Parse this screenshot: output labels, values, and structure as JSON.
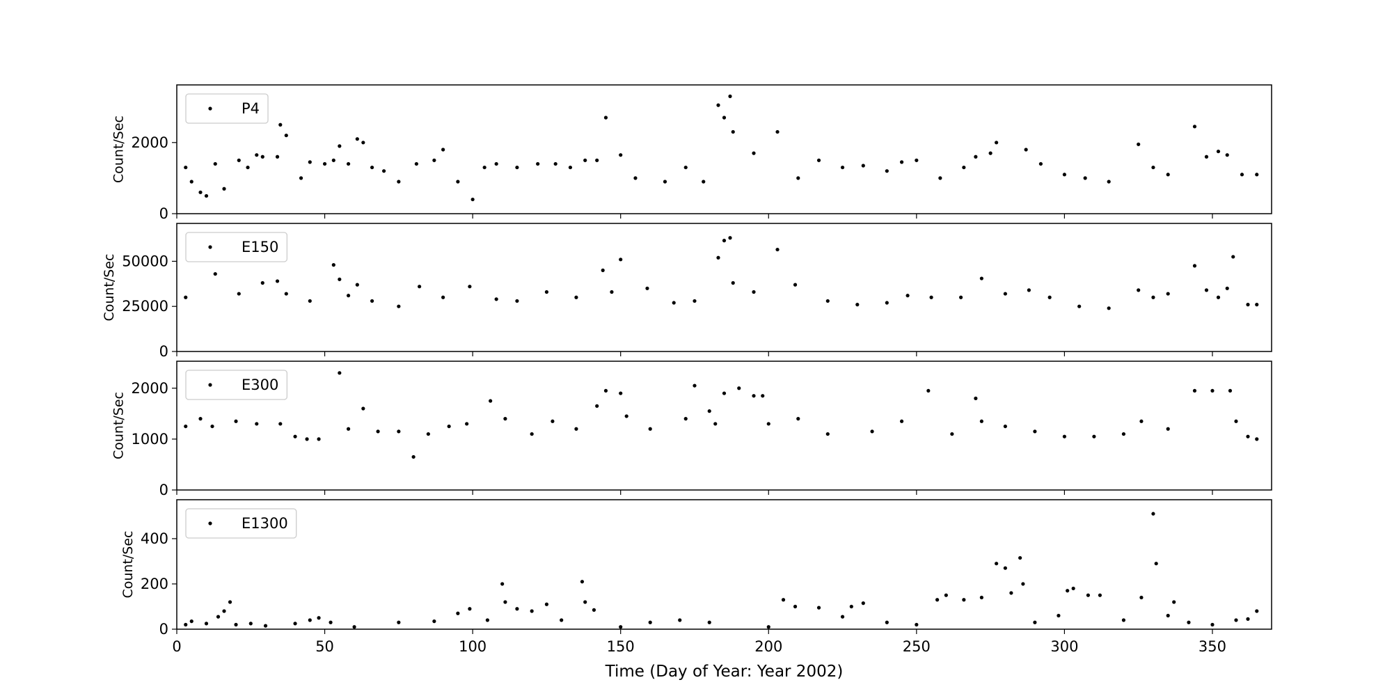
{
  "chart_data": [
    {
      "type": "scatter",
      "ylabel": "Count/Sec",
      "legend": "upper left",
      "xlim": [
        0,
        370
      ],
      "xticks": [
        0,
        50,
        100,
        150,
        200,
        250,
        300,
        350
      ],
      "ylim": [
        0,
        3620
      ],
      "yticks": [
        0,
        2000
      ],
      "series": [
        {
          "name": "P4",
          "color": "#000000",
          "x": [
            3,
            5,
            8,
            10,
            13,
            16,
            21,
            24,
            27,
            29,
            34,
            35,
            37,
            42,
            45,
            50,
            53,
            55,
            58,
            61,
            63,
            66,
            70,
            75,
            81,
            87,
            90,
            95,
            100,
            104,
            108,
            115,
            122,
            128,
            133,
            138,
            142,
            145,
            150,
            155,
            165,
            172,
            178,
            183,
            185,
            187,
            188,
            195,
            203,
            210,
            217,
            225,
            232,
            240,
            245,
            250,
            258,
            266,
            270,
            275,
            277,
            287,
            292,
            300,
            307,
            315,
            325,
            330,
            335,
            344,
            348,
            352,
            355,
            360,
            365
          ],
          "values": [
            1300,
            900,
            600,
            500,
            1400,
            700,
            1500,
            1300,
            1650,
            1600,
            1600,
            2500,
            2200,
            1000,
            1450,
            1400,
            1500,
            1900,
            1400,
            2100,
            2000,
            1300,
            1200,
            900,
            1400,
            1500,
            1800,
            900,
            400,
            1300,
            1400,
            1300,
            1400,
            1400,
            1300,
            1500,
            1500,
            2700,
            1650,
            1000,
            900,
            1300,
            900,
            3050,
            2700,
            3300,
            2300,
            1700,
            2300,
            1000,
            1500,
            1300,
            1350,
            1200,
            1450,
            1500,
            1000,
            1300,
            1600,
            1700,
            2000,
            1800,
            1400,
            1100,
            1000,
            900,
            1950,
            1300,
            1100,
            2450,
            1600,
            1750,
            1650,
            1100,
            1100
          ]
        }
      ]
    },
    {
      "type": "scatter",
      "ylabel": "Count/Sec",
      "legend": "upper left",
      "xlim": [
        0,
        370
      ],
      "xticks": [
        0,
        50,
        100,
        150,
        200,
        250,
        300,
        350
      ],
      "ylim": [
        0,
        71000
      ],
      "yticks": [
        0,
        25000,
        50000
      ],
      "series": [
        {
          "name": "E150",
          "color": "#000000",
          "x": [
            3,
            13,
            21,
            29,
            34,
            37,
            45,
            53,
            55,
            58,
            61,
            66,
            75,
            82,
            90,
            99,
            108,
            115,
            125,
            135,
            144,
            147,
            150,
            159,
            168,
            175,
            183,
            185,
            187,
            188,
            195,
            203,
            209,
            220,
            230,
            240,
            247,
            255,
            265,
            272,
            280,
            288,
            295,
            305,
            315,
            325,
            330,
            335,
            344,
            348,
            352,
            355,
            357,
            362,
            365
          ],
          "values": [
            30000,
            43000,
            32000,
            38000,
            39000,
            32000,
            28000,
            48000,
            40000,
            31000,
            37000,
            28000,
            25000,
            36000,
            30000,
            36000,
            29000,
            28000,
            33000,
            30000,
            45000,
            33000,
            51000,
            35000,
            27000,
            28000,
            52000,
            61500,
            63000,
            38000,
            33000,
            56500,
            37000,
            28000,
            26000,
            27000,
            31000,
            30000,
            30000,
            40500,
            32000,
            34000,
            30000,
            25000,
            24000,
            34000,
            30000,
            32000,
            47500,
            34000,
            30000,
            35000,
            52500,
            26000,
            26000
          ]
        }
      ]
    },
    {
      "type": "scatter",
      "ylabel": "Count/Sec",
      "legend": "upper left",
      "xlim": [
        0,
        370
      ],
      "xticks": [
        0,
        50,
        100,
        150,
        200,
        250,
        300,
        350
      ],
      "ylim": [
        0,
        2530
      ],
      "yticks": [
        0,
        1000,
        2000
      ],
      "series": [
        {
          "name": "E300",
          "color": "#000000",
          "x": [
            3,
            8,
            12,
            20,
            27,
            35,
            40,
            44,
            48,
            55,
            58,
            63,
            68,
            75,
            80,
            85,
            92,
            98,
            106,
            111,
            120,
            127,
            135,
            142,
            145,
            150,
            152,
            160,
            172,
            175,
            180,
            182,
            185,
            190,
            195,
            198,
            200,
            210,
            220,
            235,
            245,
            254,
            262,
            270,
            272,
            280,
            290,
            300,
            310,
            320,
            326,
            335,
            344,
            350,
            356,
            358,
            362,
            365
          ],
          "values": [
            1250,
            1400,
            1250,
            1350,
            1300,
            1300,
            1050,
            1000,
            1000,
            2300,
            1200,
            1600,
            1150,
            1150,
            650,
            1100,
            1250,
            1300,
            1750,
            1400,
            1100,
            1350,
            1200,
            1650,
            1950,
            1900,
            1450,
            1200,
            1400,
            2050,
            1550,
            1300,
            1900,
            2000,
            1850,
            1850,
            1300,
            1400,
            1100,
            1150,
            1350,
            1950,
            1100,
            1800,
            1350,
            1250,
            1150,
            1050,
            1050,
            1100,
            1350,
            1200,
            1950,
            1950,
            1950,
            1350,
            1050,
            1000
          ]
        }
      ]
    },
    {
      "type": "scatter",
      "ylabel": "Count/Sec",
      "xlabel": "Time (Day of Year: Year 2002)",
      "legend": "upper left",
      "xlim": [
        0,
        370
      ],
      "xticks": [
        0,
        50,
        100,
        150,
        200,
        250,
        300,
        350
      ],
      "ylim": [
        0,
        572
      ],
      "yticks": [
        0,
        200,
        400
      ],
      "series": [
        {
          "name": "E1300",
          "color": "#000000",
          "x": [
            3,
            5,
            10,
            14,
            16,
            18,
            20,
            25,
            30,
            40,
            45,
            48,
            52,
            60,
            75,
            87,
            95,
            99,
            105,
            110,
            111,
            115,
            120,
            125,
            130,
            137,
            138,
            141,
            150,
            160,
            170,
            180,
            200,
            205,
            209,
            217,
            225,
            228,
            232,
            240,
            250,
            257,
            260,
            266,
            272,
            277,
            280,
            282,
            285,
            286,
            290,
            298,
            301,
            303,
            308,
            312,
            320,
            326,
            330,
            331,
            335,
            337,
            342,
            350,
            358,
            362,
            365
          ],
          "values": [
            20,
            35,
            25,
            55,
            80,
            120,
            20,
            25,
            15,
            25,
            40,
            50,
            30,
            10,
            30,
            35,
            70,
            90,
            40,
            200,
            120,
            90,
            80,
            110,
            40,
            210,
            120,
            85,
            10,
            30,
            40,
            30,
            10,
            130,
            100,
            95,
            55,
            100,
            115,
            30,
            20,
            130,
            150,
            130,
            140,
            290,
            270,
            160,
            315,
            200,
            30,
            60,
            170,
            180,
            150,
            150,
            40,
            140,
            510,
            290,
            60,
            120,
            30,
            20,
            40,
            45,
            80
          ]
        }
      ]
    }
  ]
}
